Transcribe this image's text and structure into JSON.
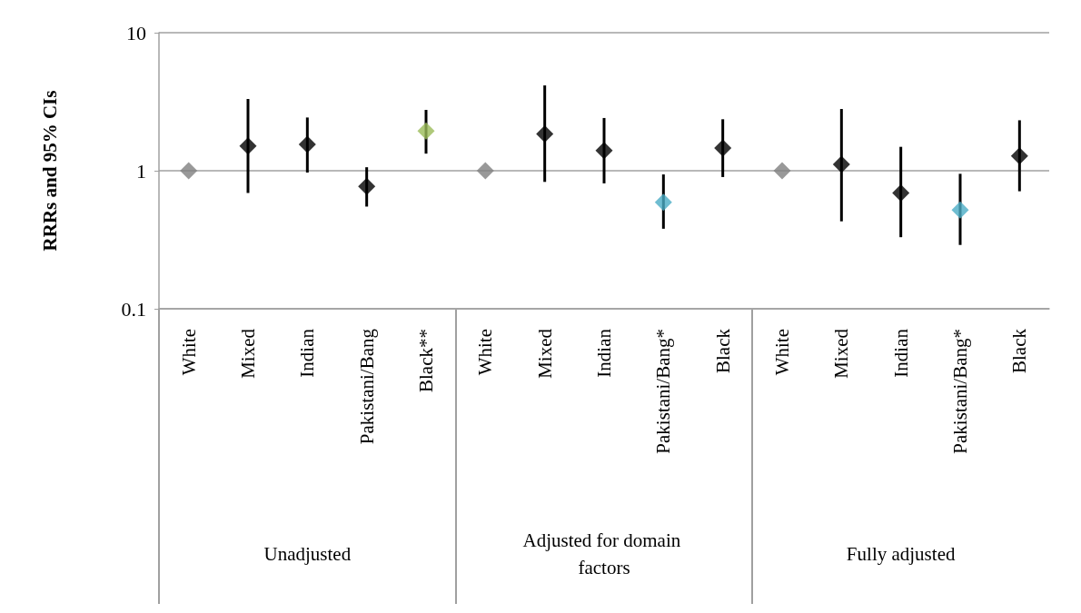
{
  "chart_data": {
    "type": "scatter",
    "ylabel": "RRRs and 95% CIs",
    "categories": [
      "White",
      "Mixed",
      "Indian",
      "Pakistani/Bang",
      "Black**",
      "White",
      "Mixed",
      "Indian",
      "Pakistani/Bang*",
      "Black",
      "White",
      "Mixed",
      "Indian",
      "Pakistani/Bang*",
      "Black"
    ],
    "series": [
      {
        "values": [
          1,
          1.51,
          1.55,
          0.77,
          1.94,
          1,
          1.85,
          1.4,
          0.59,
          1.46,
          1,
          1.11,
          0.69,
          0.52,
          1.28
        ],
        "colors": [
          "#808080",
          "#000000",
          "#000000",
          "#000000",
          "#9bbb59",
          "#808080",
          "#000000",
          "#000000",
          "#4bacc6",
          "#000000",
          "#808080",
          "#000000",
          "#000000",
          "#4bacc6",
          "#000000"
        ],
        "errors": [
          null,
          [
            0.69,
            3.31
          ],
          [
            0.97,
            2.43
          ],
          [
            0.55,
            1.06
          ],
          [
            1.33,
            2.76
          ],
          null,
          [
            0.83,
            4.15
          ],
          [
            0.81,
            2.41
          ],
          [
            0.38,
            0.94
          ],
          [
            0.9,
            2.36
          ],
          null,
          [
            0.43,
            2.8
          ],
          [
            0.33,
            1.49
          ],
          [
            0.29,
            0.95
          ],
          [
            0.71,
            2.32
          ]
        ]
      }
    ],
    "annotations": [
      "Unadjusted",
      "Adjusted for domain factors",
      "Fully adjusted"
    ],
    "log": "y",
    "ylim": [
      0.1,
      10
    ],
    "yticks": [
      0.1,
      1,
      10
    ],
    "grid": "y",
    "marker": "diamond"
  }
}
